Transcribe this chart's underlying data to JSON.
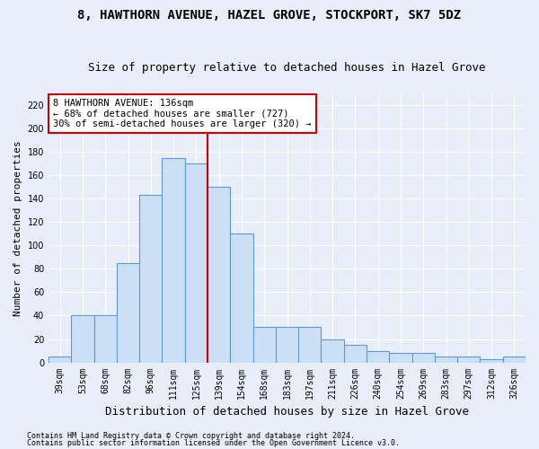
{
  "title": "8, HAWTHORN AVENUE, HAZEL GROVE, STOCKPORT, SK7 5DZ",
  "subtitle": "Size of property relative to detached houses in Hazel Grove",
  "xlabel": "Distribution of detached houses by size in Hazel Grove",
  "ylabel": "Number of detached properties",
  "footnote1": "Contains HM Land Registry data © Crown copyright and database right 2024.",
  "footnote2": "Contains public sector information licensed under the Open Government Licence v3.0.",
  "bar_labels": [
    "39sqm",
    "53sqm",
    "68sqm",
    "82sqm",
    "96sqm",
    "111sqm",
    "125sqm",
    "139sqm",
    "154sqm",
    "168sqm",
    "183sqm",
    "197sqm",
    "211sqm",
    "226sqm",
    "240sqm",
    "254sqm",
    "269sqm",
    "283sqm",
    "297sqm",
    "312sqm",
    "326sqm"
  ],
  "bar_values": [
    5,
    40,
    40,
    85,
    143,
    175,
    170,
    150,
    110,
    30,
    30,
    30,
    20,
    15,
    10,
    8,
    8,
    5,
    5,
    3,
    5
  ],
  "bar_color": "#cce0f5",
  "bar_edge_color": "#5b9bd5",
  "vline_color": "#cc0000",
  "vline_x": 6.5,
  "annotation_text": "8 HAWTHORN AVENUE: 136sqm\n← 68% of detached houses are smaller (727)\n30% of semi-detached houses are larger (320) →",
  "annotation_box_facecolor": "#ffffff",
  "annotation_box_edgecolor": "#cc0000",
  "ylim": [
    0,
    230
  ],
  "yticks": [
    0,
    20,
    40,
    60,
    80,
    100,
    120,
    140,
    160,
    180,
    200,
    220
  ],
  "background_color": "#e8eef7",
  "grid_color": "#ffffff",
  "title_fontsize": 10,
  "subtitle_fontsize": 9,
  "xlabel_fontsize": 9,
  "ylabel_fontsize": 8,
  "tick_fontsize": 7,
  "annot_fontsize": 7.5,
  "footnote_fontsize": 6
}
